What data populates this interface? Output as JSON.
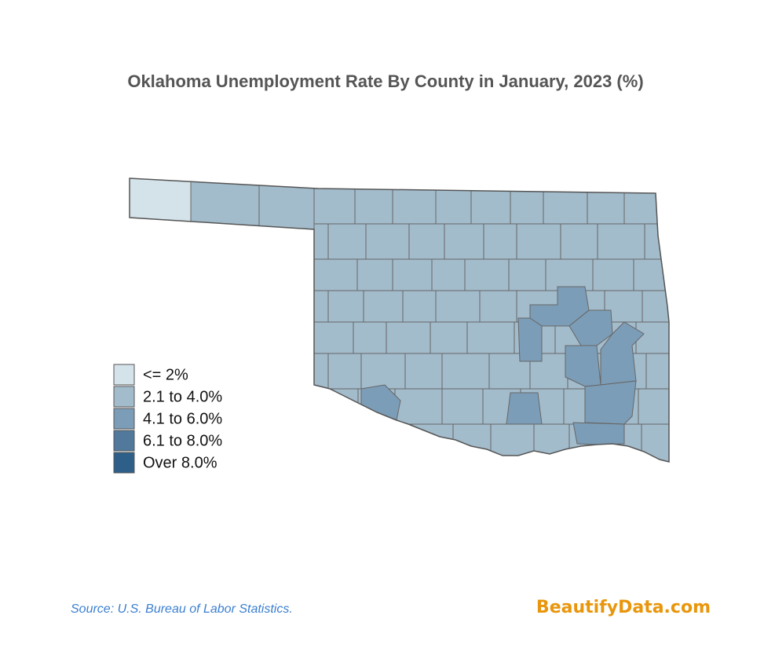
{
  "title": "Oklahoma Unemployment Rate By County in January, 2023 (%)",
  "legend": {
    "items": [
      {
        "label": "<= 2%",
        "color": "#d4e3ea"
      },
      {
        "label": "2.1 to 4.0%",
        "color": "#a3bccc"
      },
      {
        "label": "4.1 to 6.0%",
        "color": "#7c9db7"
      },
      {
        "label": "6.1 to 8.0%",
        "color": "#50799c"
      },
      {
        "label": "Over 8.0%",
        "color": "#2e5f89"
      }
    ]
  },
  "source": "Source: U.S. Bureau of Labor Statistics.",
  "brand": "BeautifyData.com"
}
